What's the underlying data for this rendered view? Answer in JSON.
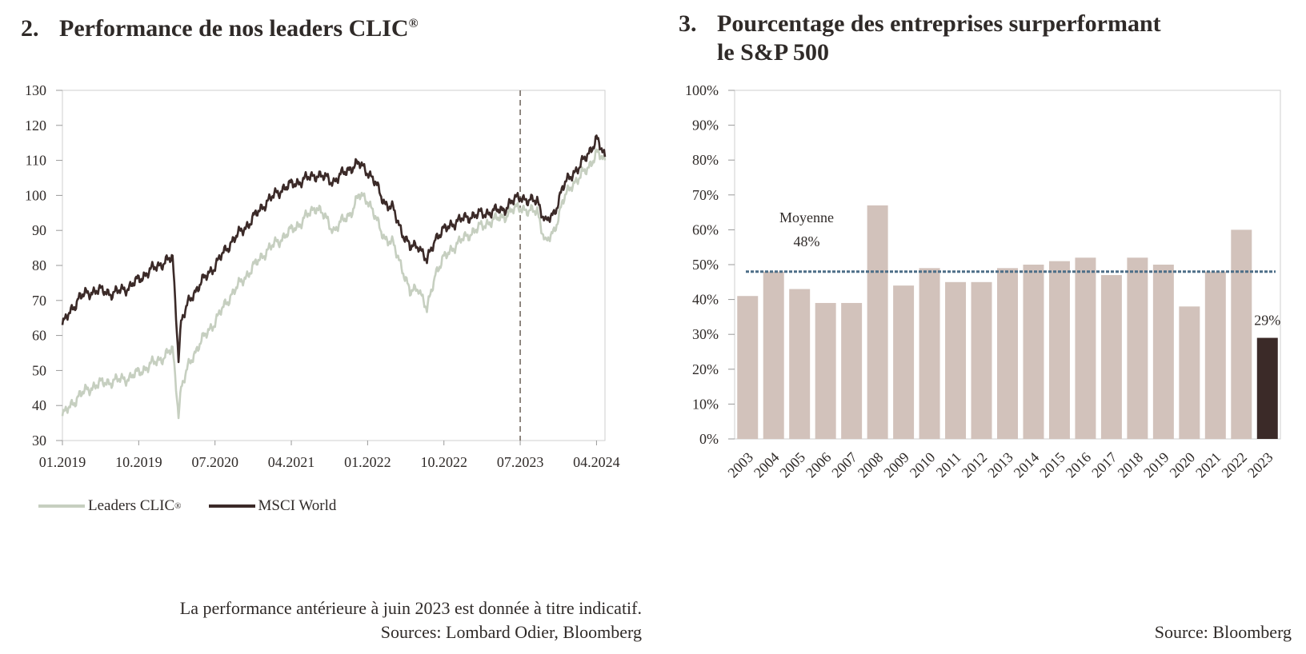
{
  "left": {
    "number": "2.",
    "title": "Performance de nos leaders CLIC",
    "title_sup": "®",
    "legend": [
      {
        "label": "Leaders CLIC",
        "sup": "®",
        "color": "#c6cfc0"
      },
      {
        "label": "MSCI World",
        "sup": "",
        "color": "#3b2a28"
      }
    ],
    "note_line1": "La performance antérieure à juin 2023 est donnée à titre indicatif.",
    "note_line2": "Sources: Lombard Odier, Bloomberg"
  },
  "right": {
    "number": "3.",
    "title_line1": "Pourcentage des entreprises surperformant",
    "title_line2": "le S&P 500",
    "note": "Source: Bloomberg"
  },
  "chart_data": [
    {
      "type": "line",
      "title": "Performance de nos leaders CLIC®",
      "ylim": [
        30,
        130
      ],
      "yticks": [
        30,
        40,
        50,
        60,
        70,
        80,
        90,
        100,
        110,
        120,
        130
      ],
      "xticks": [
        "01.2019",
        "10.2019",
        "07.2020",
        "04.2021",
        "01.2022",
        "10.2022",
        "07.2023",
        "04.2024"
      ],
      "xticks_months": [
        0,
        9,
        18,
        27,
        36,
        45,
        54,
        63
      ],
      "xlim_months": [
        0,
        64
      ],
      "vertical_line_month": 54,
      "series": [
        {
          "name": "Leaders CLIC®",
          "color": "#c6cfc0",
          "x_months": [
            0,
            2,
            4,
            6,
            8,
            10,
            12,
            13,
            13.7,
            14,
            15,
            16,
            18,
            20,
            22,
            24,
            26,
            28,
            30,
            32,
            34,
            35,
            36,
            37,
            38,
            39,
            40,
            41,
            42,
            43,
            44,
            45,
            46,
            47,
            48,
            50,
            52,
            54,
            55,
            56,
            57,
            58,
            59,
            60,
            61,
            62,
            63,
            64
          ],
          "values": [
            37,
            43,
            46,
            47,
            48,
            51,
            54,
            56,
            38,
            45,
            52,
            57,
            64,
            72,
            78,
            84,
            88,
            92,
            97,
            90,
            95,
            100,
            99,
            93,
            88,
            86,
            80,
            72,
            74,
            67,
            78,
            82,
            85,
            87,
            89,
            92,
            94,
            97,
            95,
            96,
            86,
            90,
            98,
            103,
            105,
            108,
            112,
            110
          ]
        },
        {
          "name": "MSCI World",
          "color": "#3b2a28",
          "x_months": [
            0,
            2,
            4,
            6,
            8,
            10,
            12,
            13,
            13.7,
            14,
            15,
            16,
            18,
            20,
            22,
            24,
            26,
            28,
            30,
            32,
            34,
            35,
            36,
            37,
            38,
            39,
            40,
            41,
            42,
            43,
            44,
            45,
            46,
            47,
            48,
            50,
            52,
            54,
            55,
            56,
            57,
            58,
            59,
            60,
            61,
            62,
            63,
            64
          ],
          "values": [
            63,
            71,
            73,
            72,
            74,
            78,
            81,
            82,
            54,
            64,
            70,
            74,
            80,
            87,
            92,
            98,
            102,
            104,
            106,
            104,
            108,
            109,
            107,
            103,
            98,
            96,
            90,
            85,
            86,
            81,
            88,
            90,
            92,
            93,
            94,
            95,
            96,
            100,
            98,
            99,
            92,
            95,
            102,
            106,
            108,
            112,
            116,
            111
          ]
        }
      ]
    },
    {
      "type": "bar",
      "title": "Pourcentage des entreprises surperformant le S&P 500",
      "categories": [
        "2003",
        "2004",
        "2005",
        "2006",
        "2007",
        "2008",
        "2009",
        "2010",
        "2011",
        "2012",
        "2013",
        "2014",
        "2015",
        "2016",
        "2017",
        "2018",
        "2019",
        "2020",
        "2021",
        "2022",
        "2023"
      ],
      "values": [
        41,
        48,
        43,
        39,
        39,
        67,
        44,
        49,
        45,
        45,
        49,
        50,
        51,
        52,
        47,
        52,
        50,
        38,
        48,
        60,
        29
      ],
      "ylim": [
        0,
        100
      ],
      "yticks": [
        "0%",
        "10%",
        "20%",
        "30%",
        "40%",
        "50%",
        "60%",
        "70%",
        "80%",
        "90%",
        "100%"
      ],
      "bar_color": "#d2c2bb",
      "highlight_color": "#3b2a28",
      "highlight_index": 20,
      "highlight_label": "29%",
      "average": 48,
      "average_color": "#4d6e87",
      "average_label_line1": "Moyenne",
      "average_label_line2": "48%",
      "average_label_color": "#8fa3b8"
    }
  ]
}
